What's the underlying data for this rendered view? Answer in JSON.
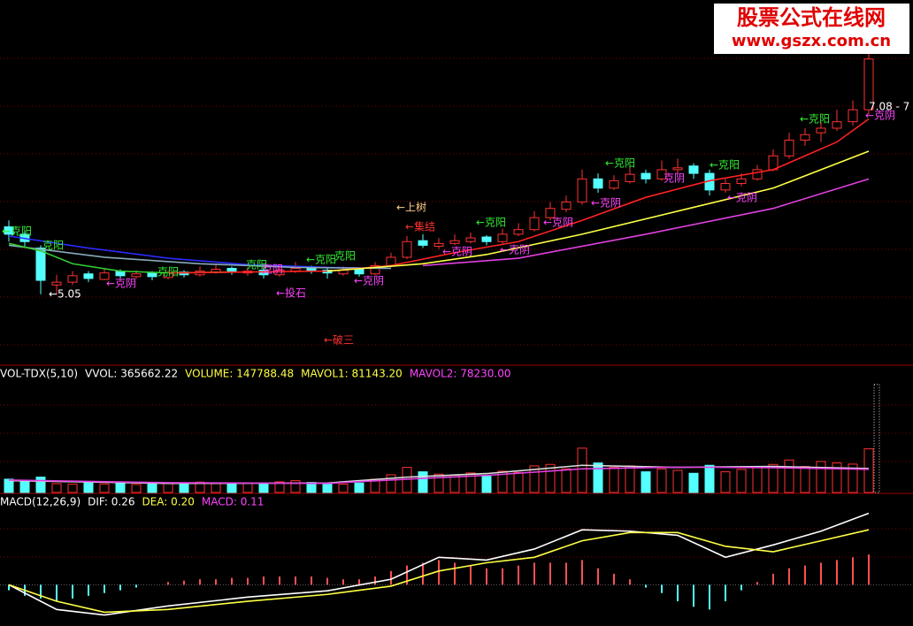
{
  "watermark": {
    "title": "股票公式在线网",
    "url": "www.gszx.com.cn"
  },
  "chart_data": [
    {
      "type": "candlestick",
      "up_color": "#ff3232",
      "down_color": "#54ffff",
      "ylim": [
        4.28,
        8.24
      ],
      "candles": [
        [
          5.78,
          5.85,
          5.62,
          5.7
        ],
        [
          5.7,
          5.74,
          5.55,
          5.62
        ],
        [
          5.55,
          5.58,
          5.05,
          5.2
        ],
        [
          5.15,
          5.26,
          5.05,
          5.18
        ],
        [
          5.18,
          5.3,
          5.15,
          5.25
        ],
        [
          5.27,
          5.3,
          5.18,
          5.22
        ],
        [
          5.21,
          5.33,
          5.2,
          5.28
        ],
        [
          5.3,
          5.32,
          5.22,
          5.25
        ],
        [
          5.24,
          5.31,
          5.22,
          5.27
        ],
        [
          5.28,
          5.3,
          5.2,
          5.24
        ],
        [
          5.23,
          5.31,
          5.21,
          5.28
        ],
        [
          5.29,
          5.31,
          5.23,
          5.26
        ],
        [
          5.26,
          5.35,
          5.24,
          5.3
        ],
        [
          5.29,
          5.37,
          5.27,
          5.32
        ],
        [
          5.33,
          5.35,
          5.26,
          5.29
        ],
        [
          5.28,
          5.34,
          5.25,
          5.3
        ],
        [
          5.31,
          5.33,
          5.22,
          5.26
        ],
        [
          5.26,
          5.36,
          5.24,
          5.31
        ],
        [
          5.3,
          5.4,
          5.28,
          5.33
        ],
        [
          5.34,
          5.36,
          5.27,
          5.3
        ],
        [
          5.31,
          5.33,
          5.22,
          5.28
        ],
        [
          5.27,
          5.35,
          5.25,
          5.31
        ],
        [
          5.32,
          5.34,
          5.24,
          5.27
        ],
        [
          5.27,
          5.4,
          5.26,
          5.36
        ],
        [
          5.36,
          5.5,
          5.34,
          5.45
        ],
        [
          5.45,
          5.68,
          5.43,
          5.62
        ],
        [
          5.63,
          5.7,
          5.55,
          5.58
        ],
        [
          5.57,
          5.66,
          5.54,
          5.6
        ],
        [
          5.6,
          5.7,
          5.58,
          5.63
        ],
        [
          5.62,
          5.72,
          5.6,
          5.66
        ],
        [
          5.67,
          5.69,
          5.58,
          5.62
        ],
        [
          5.62,
          5.76,
          5.6,
          5.7
        ],
        [
          5.7,
          5.82,
          5.68,
          5.75
        ],
        [
          5.75,
          5.95,
          5.73,
          5.88
        ],
        [
          5.88,
          6.05,
          5.85,
          5.98
        ],
        [
          5.97,
          6.12,
          5.94,
          6.05
        ],
        [
          6.05,
          6.4,
          6.02,
          6.3
        ],
        [
          6.3,
          6.36,
          6.15,
          6.2
        ],
        [
          6.2,
          6.34,
          6.18,
          6.28
        ],
        [
          6.27,
          6.45,
          6.25,
          6.35
        ],
        [
          6.36,
          6.4,
          6.25,
          6.3
        ],
        [
          6.3,
          6.5,
          6.28,
          6.4
        ],
        [
          6.4,
          6.52,
          6.35,
          6.42
        ],
        [
          6.44,
          6.47,
          6.3,
          6.36
        ],
        [
          6.36,
          6.4,
          6.12,
          6.18
        ],
        [
          6.18,
          6.3,
          6.15,
          6.25
        ],
        [
          6.25,
          6.36,
          6.22,
          6.3
        ],
        [
          6.3,
          6.45,
          6.28,
          6.4
        ],
        [
          6.4,
          6.62,
          6.38,
          6.55
        ],
        [
          6.55,
          6.8,
          6.52,
          6.72
        ],
        [
          6.72,
          6.85,
          6.66,
          6.78
        ],
        [
          6.8,
          6.92,
          6.7,
          6.85
        ],
        [
          6.85,
          7.05,
          6.82,
          6.92
        ],
        [
          6.92,
          7.15,
          6.88,
          7.05
        ],
        [
          7.05,
          7.7,
          7.0,
          7.6
        ]
      ],
      "series": [
        {
          "color": "#2a2aff",
          "x": [
            0,
            5,
            10,
            15,
            20,
            24
          ],
          "values": [
            5.68,
            5.55,
            5.44,
            5.37,
            5.34,
            5.33
          ]
        },
        {
          "color": "#88aabb",
          "x": [
            0,
            6,
            12,
            18,
            24
          ],
          "values": [
            5.58,
            5.45,
            5.38,
            5.34,
            5.33
          ]
        },
        {
          "color": "#33cc33",
          "x": [
            0,
            2,
            4,
            7,
            10,
            14
          ],
          "values": [
            5.6,
            5.52,
            5.38,
            5.3,
            5.28,
            5.29
          ]
        },
        {
          "color": "#ff2222",
          "x": [
            10,
            20,
            24,
            28,
            32,
            36,
            40,
            44,
            48,
            52,
            54
          ],
          "values": [
            5.28,
            5.3,
            5.36,
            5.5,
            5.62,
            5.85,
            6.1,
            6.28,
            6.4,
            6.7,
            6.95
          ]
        },
        {
          "color": "#ffff44",
          "x": [
            20,
            26,
            30,
            36,
            42,
            48,
            54
          ],
          "values": [
            5.3,
            5.38,
            5.48,
            5.7,
            5.95,
            6.2,
            6.6
          ]
        },
        {
          "color": "#e040e0",
          "x": [
            26,
            32,
            40,
            48,
            54
          ],
          "values": [
            5.36,
            5.44,
            5.7,
            5.98,
            6.3
          ]
        }
      ],
      "annotations": [
        {
          "text": "←克阳",
          "color": "#33ee33"
        },
        {
          "text": "克阳",
          "color": "#33ee33"
        },
        {
          "text": "←克阴",
          "color": "#ff44ff"
        },
        {
          "text": "←5.05",
          "color": "#ffffff"
        },
        {
          "text": "克阳",
          "color": "#33ee33"
        },
        {
          "text": "克阳",
          "color": "#33ee33"
        },
        {
          "text": "克阴",
          "color": "#ff44ff"
        },
        {
          "text": "←投石",
          "color": "#ff44ff"
        },
        {
          "text": "←克阳",
          "color": "#33ee33"
        },
        {
          "text": "克阳",
          "color": "#33ee33"
        },
        {
          "text": "←克阴",
          "color": "#ff44ff"
        },
        {
          "text": "←破三",
          "color": "#ff3232"
        },
        {
          "text": "←上树",
          "color": "#ffcc88"
        },
        {
          "text": "←集结",
          "color": "#ff3232"
        },
        {
          "text": "←克阴",
          "color": "#ff44ff"
        },
        {
          "text": "←克阳",
          "color": "#33ee33"
        },
        {
          "text": "←克阴",
          "color": "#ff44ff"
        },
        {
          "text": "←克阴",
          "color": "#ff44ff"
        },
        {
          "text": "←克阴",
          "color": "#ff44ff"
        },
        {
          "text": "←克阳",
          "color": "#33ee33"
        },
        {
          "text": "克阴",
          "color": "#ff44ff"
        },
        {
          "text": "←克阳",
          "color": "#33ee33"
        },
        {
          "text": "←克阴",
          "color": "#ff44ff"
        },
        {
          "text": "←克阳",
          "color": "#33ee33"
        },
        {
          "text": "←克阴",
          "color": "#ff44ff"
        },
        {
          "text": "7.08 - 7",
          "color": "#ffffff"
        }
      ]
    },
    {
      "type": "volume",
      "ylim": [
        0,
        380000
      ],
      "headers": [
        {
          "text": "VOL-TDX(5,10)",
          "color": "#ffffff"
        },
        {
          "text": "VVOL: 365662.22",
          "color": "#ffffff"
        },
        {
          "text": "VOLUME: 147788.48",
          "color": "#ffff44"
        },
        {
          "text": "MAVOL1: 81143.20",
          "color": "#ffff44"
        },
        {
          "text": "MAVOL2: 78230.00",
          "color": "#ff44ff"
        }
      ],
      "values": [
        45000,
        38000,
        52000,
        30000,
        28000,
        33000,
        29000,
        31000,
        27000,
        30000,
        32000,
        28000,
        35000,
        30000,
        29000,
        33000,
        31000,
        36000,
        40000,
        34000,
        30000,
        28000,
        32000,
        45000,
        60000,
        85000,
        70000,
        62000,
        58000,
        66000,
        55000,
        72000,
        68000,
        90000,
        95000,
        80000,
        150000,
        100000,
        85000,
        90000,
        70000,
        80000,
        75000,
        65000,
        92000,
        70000,
        78000,
        85000,
        95000,
        110000,
        88000,
        105000,
        100000,
        96000,
        147788
      ],
      "vvol": 365662.22,
      "series": [
        {
          "color": "#dddddd",
          "x": [
            0,
            10,
            20,
            25,
            30,
            36,
            42,
            48,
            54
          ],
          "values": [
            40000,
            31000,
            32000,
            52000,
            64000,
            92000,
            85000,
            88000,
            81143.2
          ]
        },
        {
          "color": "#e040e0",
          "x": [
            0,
            10,
            20,
            25,
            30,
            36,
            42,
            48,
            54
          ],
          "values": [
            42000,
            33000,
            31000,
            45000,
            58000,
            80000,
            86000,
            84000,
            78230.0
          ]
        }
      ]
    },
    {
      "type": "macd",
      "ylim": [
        -0.15,
        0.31
      ],
      "headers": [
        {
          "text": "MACD(12,26,9)",
          "color": "#ffffff"
        },
        {
          "text": "DIF: 0.26",
          "color": "#ffffff"
        },
        {
          "text": "DEA: 0.20",
          "color": "#ffff44"
        },
        {
          "text": "MACD: 0.11",
          "color": "#ff44ff"
        }
      ],
      "values": [
        -0.02,
        -0.04,
        -0.05,
        -0.06,
        -0.05,
        -0.04,
        -0.03,
        -0.02,
        -0.01,
        0.0,
        0.01,
        0.015,
        0.02,
        0.02,
        0.025,
        0.025,
        0.03,
        0.03,
        0.03,
        0.03,
        0.025,
        0.02,
        0.02,
        0.03,
        0.05,
        0.07,
        0.08,
        0.09,
        0.08,
        0.07,
        0.06,
        0.06,
        0.07,
        0.08,
        0.08,
        0.08,
        0.09,
        0.06,
        0.04,
        0.02,
        -0.01,
        -0.03,
        -0.06,
        -0.08,
        -0.09,
        -0.06,
        -0.02,
        0.01,
        0.04,
        0.06,
        0.07,
        0.08,
        0.09,
        0.1,
        0.11
      ],
      "series": [
        {
          "color": "#ffffff",
          "x": [
            0,
            3,
            6,
            10,
            15,
            20,
            24,
            27,
            30,
            33,
            36,
            39,
            42,
            45,
            48,
            51,
            54
          ],
          "values": [
            0.0,
            -0.09,
            -0.11,
            -0.077,
            -0.045,
            -0.022,
            0.02,
            0.1,
            0.09,
            0.13,
            0.2,
            0.195,
            0.18,
            0.1,
            0.145,
            0.195,
            0.26
          ]
        },
        {
          "color": "#ffff44",
          "x": [
            0,
            3,
            6,
            10,
            15,
            20,
            24,
            27,
            30,
            33,
            36,
            39,
            42,
            45,
            48,
            51,
            54
          ],
          "values": [
            0.0,
            -0.06,
            -0.1,
            -0.09,
            -0.06,
            -0.035,
            -0.005,
            0.05,
            0.08,
            0.1,
            0.16,
            0.19,
            0.19,
            0.14,
            0.12,
            0.16,
            0.2
          ]
        }
      ]
    }
  ]
}
